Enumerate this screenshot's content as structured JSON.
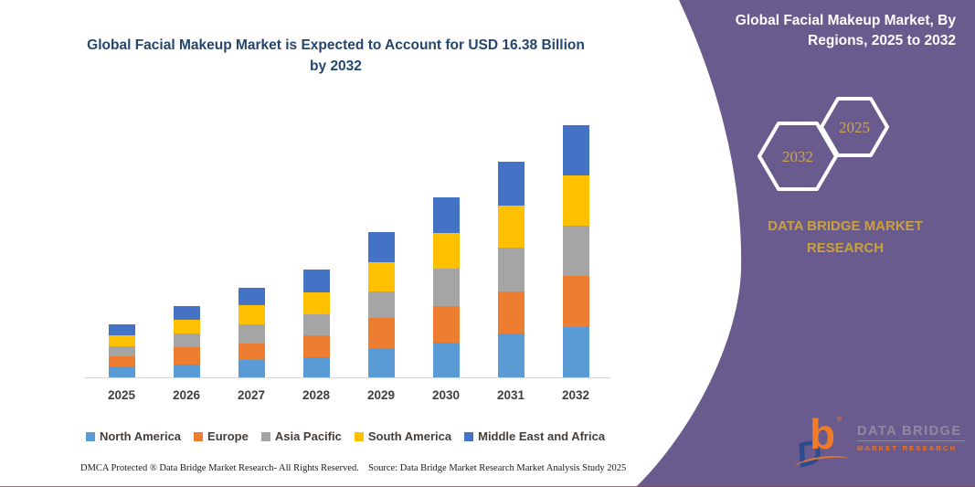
{
  "chart_title": "Global Facial Makeup Market is Expected to Account for USD 16.38 Billion by 2032",
  "chart_data": {
    "type": "bar",
    "stacked": true,
    "title": "Global Facial Makeup Market is Expected to Account for USD 16.38 Billion by 2032",
    "categories": [
      "2025",
      "2026",
      "2027",
      "2028",
      "2029",
      "2030",
      "2031",
      "2032"
    ],
    "series": [
      {
        "name": "North America",
        "color": "#5B9BD5",
        "values": [
          0.69,
          0.85,
          1.13,
          1.32,
          1.88,
          2.27,
          2.83,
          3.29
        ]
      },
      {
        "name": "Europe",
        "color": "#ED7D31",
        "values": [
          0.69,
          1.09,
          1.09,
          1.42,
          1.98,
          2.37,
          2.77,
          3.3
        ]
      },
      {
        "name": "Asia Pacific",
        "color": "#A5A5A5",
        "values": [
          0.65,
          0.89,
          1.25,
          1.35,
          1.74,
          2.43,
          2.81,
          3.25
        ]
      },
      {
        "name": "South America",
        "color": "#FFC000",
        "values": [
          0.69,
          0.89,
          1.23,
          1.42,
          1.88,
          2.31,
          2.73,
          3.28
        ]
      },
      {
        "name": "Middle East and Africa",
        "color": "#4472C4",
        "values": [
          0.75,
          0.91,
          1.13,
          1.47,
          1.98,
          2.31,
          2.87,
          3.26
        ]
      }
    ],
    "totals": [
      3.47,
      4.63,
      5.83,
      6.98,
      9.46,
      11.69,
      14.01,
      16.38
    ],
    "units": "USD Billion",
    "xlabel": "",
    "ylabel": "",
    "grid": false,
    "y_axis_shown": false,
    "legend_position": "bottom"
  },
  "panel": {
    "title": "Global Facial Makeup Market, By Regions, 2025 to 2032",
    "hexagons": [
      {
        "label": "2032"
      },
      {
        "label": "2025"
      }
    ],
    "brand_text": "DATA BRIDGE MARKET RESEARCH",
    "colors": {
      "background": "#6A5B8E",
      "gold": "#C9A13E",
      "white": "#FFFFFF"
    }
  },
  "logo": {
    "mark_b": "b",
    "mark_d": "D",
    "reg_mark": "®",
    "name": "DATA BRIDGE",
    "tagline": "MARKET RESEARCH"
  },
  "footer": {
    "dmca": "DMCA Protected ® Data Bridge Market Research-  All Rights Reserved.",
    "source": "Source: Data Bridge Market Research  Market Analysis Study 2025"
  },
  "colors": {
    "title_blue": "#24466E",
    "axis_label": "#3F3F3F",
    "axis_line": "#D6D6D6",
    "panel_purple": "#6A5B8E"
  }
}
